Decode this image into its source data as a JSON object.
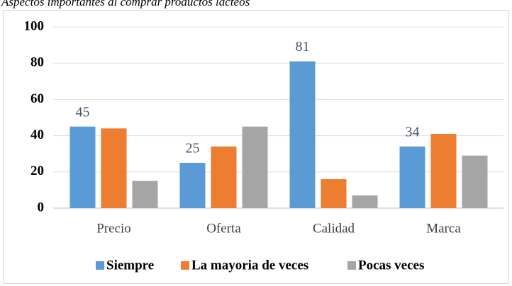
{
  "chart_data": {
    "type": "bar",
    "title": "Aspectos importantes al comprar productos lácteos",
    "categories": [
      "Precio",
      "Oferta",
      "Calidad",
      "Marca"
    ],
    "series": [
      {
        "name": "Siempre",
        "color": "#5b9bd5",
        "values": [
          45,
          25,
          81,
          34
        ],
        "data_labels": true
      },
      {
        "name": "La mayoria de veces",
        "color": "#ed7d31",
        "values": [
          44,
          34,
          16,
          41
        ],
        "data_labels": false
      },
      {
        "name": "Pocas veces",
        "color": "#a5a5a5",
        "values": [
          15,
          45,
          7,
          29
        ],
        "data_labels": false
      }
    ],
    "ylim": [
      0,
      100
    ],
    "yticks": [
      0,
      20,
      40,
      60,
      80,
      100
    ],
    "grid": true,
    "legend": "bottom"
  }
}
